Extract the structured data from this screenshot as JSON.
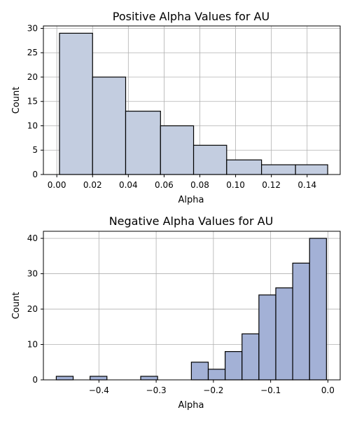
{
  "chart_data": [
    {
      "type": "bar",
      "title": "Positive Alpha Values for AU",
      "xlabel": "Alpha",
      "ylabel": "Count",
      "xlim": [
        -0.0075,
        0.1585
      ],
      "ylim": [
        0,
        30.5
      ],
      "grid": true,
      "bar_color": "#c3cde0",
      "edge_color": "#000000",
      "xticks": [
        0.0,
        0.02,
        0.04,
        0.06,
        0.08,
        0.1,
        0.12,
        0.14
      ],
      "xtick_labels": [
        "0.00",
        "0.02",
        "0.04",
        "0.06",
        "0.08",
        "0.10",
        "0.12",
        "0.14"
      ],
      "yticks": [
        0,
        5,
        10,
        15,
        20,
        25,
        30
      ],
      "ytick_labels": [
        "0",
        "5",
        "10",
        "15",
        "20",
        "25",
        "30"
      ],
      "bins": [
        {
          "x0": 0.0015,
          "x1": 0.02,
          "count": 29
        },
        {
          "x0": 0.02,
          "x1": 0.0385,
          "count": 20
        },
        {
          "x0": 0.0385,
          "x1": 0.058,
          "count": 13
        },
        {
          "x0": 0.058,
          "x1": 0.0765,
          "count": 10
        },
        {
          "x0": 0.0765,
          "x1": 0.095,
          "count": 6
        },
        {
          "x0": 0.095,
          "x1": 0.1145,
          "count": 3
        },
        {
          "x0": 0.1145,
          "x1": 0.1335,
          "count": 2
        },
        {
          "x0": 0.1335,
          "x1": 0.1515,
          "count": 2
        }
      ]
    },
    {
      "type": "bar",
      "title": "Negative Alpha Values for AU",
      "xlabel": "Alpha",
      "ylabel": "Count",
      "xlim": [
        -0.497,
        0.0215
      ],
      "ylim": [
        0,
        42
      ],
      "grid": true,
      "bar_color": "#a3b1d6",
      "edge_color": "#000000",
      "xticks": [
        -0.4,
        -0.3,
        -0.2,
        -0.1,
        0.0
      ],
      "xtick_labels": [
        "−0.4",
        "−0.3",
        "−0.2",
        "−0.1",
        "0.0"
      ],
      "yticks": [
        0,
        10,
        20,
        30,
        40
      ],
      "ytick_labels": [
        "0",
        "10",
        "20",
        "30",
        "40"
      ],
      "bins": [
        {
          "x0": -0.4745,
          "x1": -0.445,
          "count": 1
        },
        {
          "x0": -0.445,
          "x1": -0.4155,
          "count": 0
        },
        {
          "x0": -0.4155,
          "x1": -0.386,
          "count": 1
        },
        {
          "x0": -0.386,
          "x1": -0.3565,
          "count": 0
        },
        {
          "x0": -0.3565,
          "x1": -0.327,
          "count": 0
        },
        {
          "x0": -0.327,
          "x1": -0.2975,
          "count": 1
        },
        {
          "x0": -0.2975,
          "x1": -0.268,
          "count": 0
        },
        {
          "x0": -0.268,
          "x1": -0.2385,
          "count": 0
        },
        {
          "x0": -0.2385,
          "x1": -0.209,
          "count": 5
        },
        {
          "x0": -0.209,
          "x1": -0.1795,
          "count": 3
        },
        {
          "x0": -0.1795,
          "x1": -0.15,
          "count": 8
        },
        {
          "x0": -0.15,
          "x1": -0.1205,
          "count": 13
        },
        {
          "x0": -0.1205,
          "x1": -0.091,
          "count": 24
        },
        {
          "x0": -0.091,
          "x1": -0.0615,
          "count": 26
        },
        {
          "x0": -0.0615,
          "x1": -0.032,
          "count": 33
        },
        {
          "x0": -0.032,
          "x1": -0.0025,
          "count": 40
        }
      ]
    }
  ]
}
